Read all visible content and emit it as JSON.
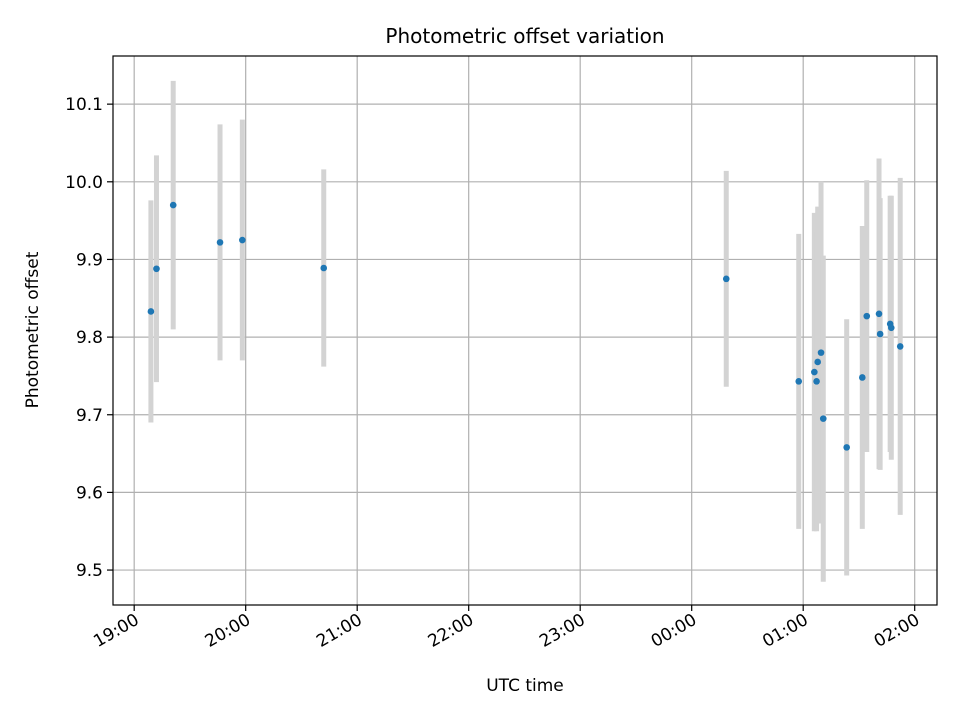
{
  "chart_data": {
    "type": "scatter",
    "title": "Photometric offset variation",
    "xlabel": "UTC time",
    "ylabel": "Photometric offset",
    "grid": true,
    "x_unit": "hours",
    "xlim": [
      18.81,
      26.2
    ],
    "ylim": [
      9.455,
      10.162
    ],
    "x_ticks": [
      19,
      20,
      21,
      22,
      23,
      24,
      25,
      26
    ],
    "x_tick_labels": [
      "19:00",
      "20:00",
      "21:00",
      "22:00",
      "23:00",
      "00:00",
      "01:00",
      "02:00"
    ],
    "y_ticks": [
      9.5,
      9.6,
      9.7,
      9.8,
      9.9,
      10.0,
      10.1
    ],
    "y_tick_labels": [
      "9.5",
      "9.6",
      "9.7",
      "9.8",
      "9.9",
      "10.0",
      "10.1"
    ],
    "colors": {
      "point": "#1f77b4",
      "errorbar": "#d3d3d3",
      "grid": "#b0b0b0"
    },
    "points": [
      {
        "x": 19.15,
        "y": 9.833,
        "err": 0.143
      },
      {
        "x": 19.2,
        "y": 9.888,
        "err": 0.146
      },
      {
        "x": 19.35,
        "y": 9.97,
        "err": 0.16
      },
      {
        "x": 19.77,
        "y": 9.922,
        "err": 0.152
      },
      {
        "x": 19.97,
        "y": 9.925,
        "err": 0.155
      },
      {
        "x": 20.7,
        "y": 9.889,
        "err": 0.127
      },
      {
        "x": 24.31,
        "y": 9.875,
        "err": 0.139
      },
      {
        "x": 24.96,
        "y": 9.743,
        "err": 0.19
      },
      {
        "x": 25.1,
        "y": 9.755,
        "err": 0.205
      },
      {
        "x": 25.12,
        "y": 9.743,
        "err": 0.193
      },
      {
        "x": 25.13,
        "y": 9.768,
        "err": 0.2
      },
      {
        "x": 25.16,
        "y": 9.78,
        "err": 0.22
      },
      {
        "x": 25.18,
        "y": 9.695,
        "err": 0.21
      },
      {
        "x": 25.39,
        "y": 9.658,
        "err": 0.165
      },
      {
        "x": 25.53,
        "y": 9.748,
        "err": 0.195
      },
      {
        "x": 25.57,
        "y": 9.827,
        "err": 0.175
      },
      {
        "x": 25.68,
        "y": 9.83,
        "err": 0.2
      },
      {
        "x": 25.69,
        "y": 9.804,
        "err": 0.175
      },
      {
        "x": 25.78,
        "y": 9.817,
        "err": 0.165
      },
      {
        "x": 25.79,
        "y": 9.812,
        "err": 0.17
      },
      {
        "x": 25.87,
        "y": 9.788,
        "err": 0.217
      }
    ]
  }
}
